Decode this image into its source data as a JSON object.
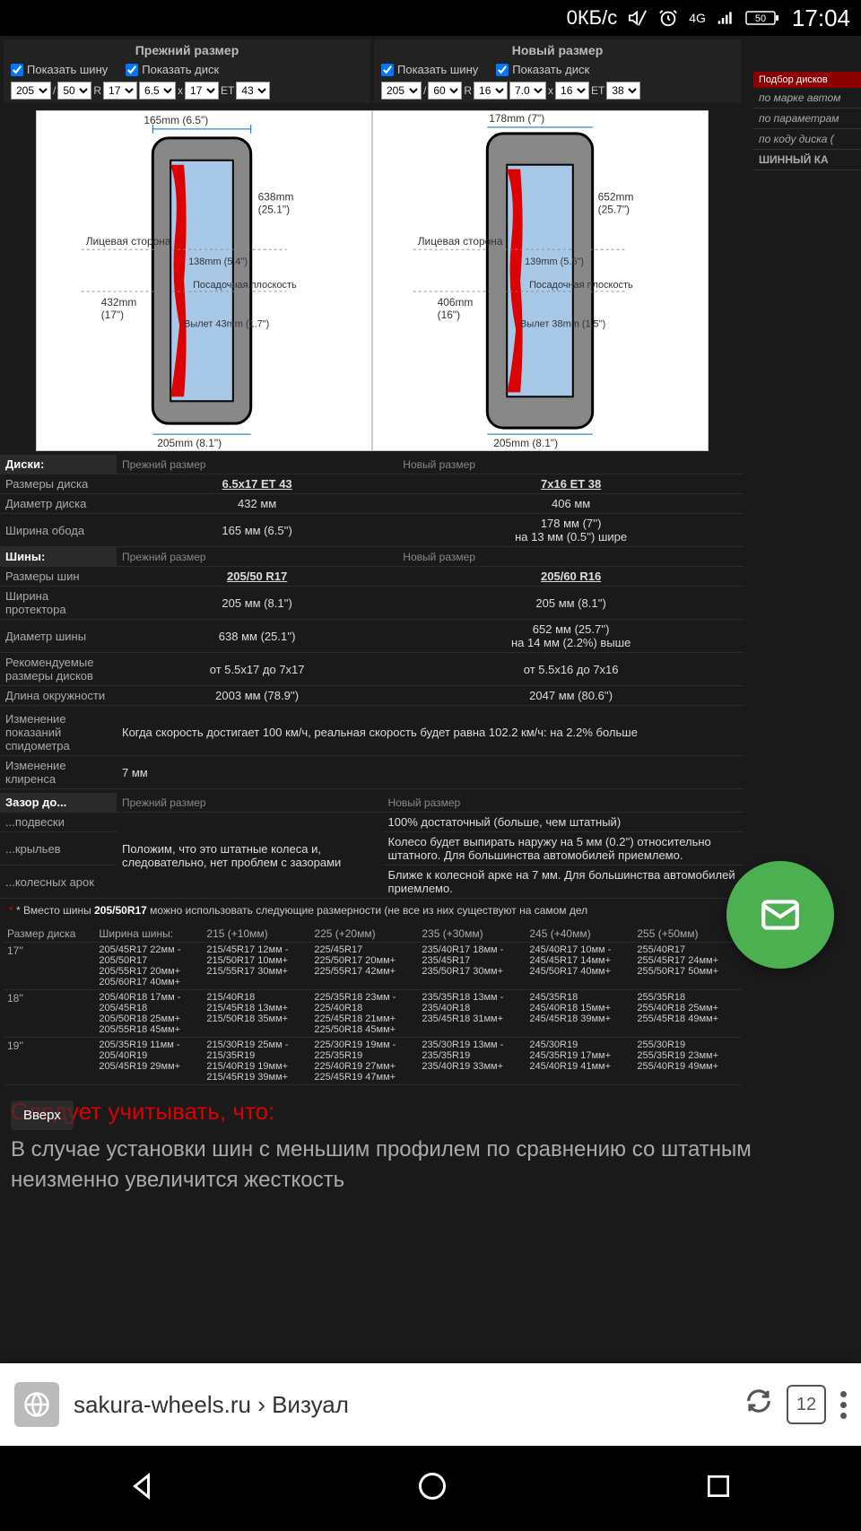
{
  "status": {
    "data": "0КБ/с",
    "net": "4G",
    "battery": "50",
    "time": "17:04"
  },
  "cols": {
    "old": {
      "title": "Прежний размер",
      "showTire": "Показать шину",
      "showDisc": "Показать диск",
      "w": "205",
      "p": "50",
      "r": "R",
      "d": "17",
      "dw": "6.5",
      "dd": "17",
      "et": "ET",
      "etv": "43"
    },
    "new": {
      "title": "Новый размер",
      "showTire": "Показать шину",
      "showDisc": "Показать диск",
      "w": "205",
      "p": "60",
      "r": "R",
      "d": "16",
      "dw": "7.0",
      "dd": "16",
      "et": "ET",
      "etv": "38"
    }
  },
  "side": {
    "hdr": "Подбор дисков",
    "i1": "по марке автом",
    "i2": "по параметрам",
    "i3": "по коду диска (",
    "calc": "ШИННЫЙ КА"
  },
  "diag": {
    "old": {
      "topW": "165mm (6.5\")",
      "tireD": "638mm",
      "tireDi": "(25.1\")",
      "face": "Лицевая сторона",
      "flange": "138mm (5.4\")",
      "seat": "Посадочная плоскость",
      "rimD": "432mm",
      "rimDi": "(17\")",
      "offset": "Вылет 43mm (1.7\")",
      "botW": "205mm (8.1\")"
    },
    "new": {
      "topW": "178mm (7\")",
      "tireD": "652mm",
      "tireDi": "(25.7\")",
      "face": "Лицевая сторона",
      "flange": "139mm (5.5\")",
      "seat": "Посадочная плоскость",
      "rimD": "406mm",
      "rimDi": "(16\")",
      "offset": "Вылет 38mm (1.5\")",
      "botW": "205mm (8.1\")"
    }
  },
  "tDisc": {
    "h": "Диски:",
    "c1": "Прежний размер",
    "c2": "Новый размер",
    "r1": {
      "l": "Размеры диска",
      "v1": "6.5x17 ET 43",
      "v2": "7x16 ET 38"
    },
    "r2": {
      "l": "Диаметр диска",
      "v1": "432 мм",
      "v2": "406 мм"
    },
    "r3": {
      "l": "Ширина обода",
      "v1": "165 мм (6.5'')",
      "v2": "178 мм (7'')",
      "v2b": "на 13 мм (0.5'') шире"
    }
  },
  "tTire": {
    "h": "Шины:",
    "c1": "Прежний размер",
    "c2": "Новый размер",
    "r1": {
      "l": "Размеры шин",
      "v1": "205/50 R17",
      "v2": "205/60 R16"
    },
    "r2": {
      "l": "Ширина протектора",
      "v1": "205 мм (8.1'')",
      "v2": "205 мм (8.1'')"
    },
    "r3": {
      "l": "Диаметр шины",
      "v1": "638 мм (25.1'')",
      "v2": "652 мм (25.7'')",
      "v2b": "на 14 мм (2.2%) выше"
    },
    "r4": {
      "l": "Рекомендуемые размеры дисков",
      "v1": "от 5.5x17 до 7x17",
      "v2": "от 5.5x16 до 7x16"
    },
    "r5": {
      "l": "Длина окружности",
      "v1": "2003 мм (78.9'')",
      "v2": "2047 мм (80.6'')"
    }
  },
  "tExtra": {
    "r1": {
      "l": "Изменение показаний спидометра",
      "v": "Когда скорость достигает 100 км/ч, реальная скорость будет равна 102.2 км/ч: на 2.2% больше"
    },
    "r2": {
      "l": "Изменение клиренса",
      "v": "7 мм"
    }
  },
  "tGap": {
    "h": "Зазор до...",
    "c1": "Прежний размер",
    "c2": "Новый размер",
    "r1": {
      "l": "...подвески",
      "v1": "Положим, что это штатные колеса и, следовательно, нет проблем с зазорами",
      "v2": "100% достаточный (больше, чем штатный)"
    },
    "r2": {
      "l": "...крыльев",
      "v2": "Колесо будет выпирать наружу на 5 мм (0.2'') относительно штатного. Для большинства автомобилей приемлемо."
    },
    "r3": {
      "l": "...колесных арок",
      "v2": "Ближе к колесной арке на 7 мм. Для большинства автомобилей приемлемо."
    }
  },
  "altNote": {
    "pre": "* Вместо шины ",
    "size": "205/50R17",
    "post": " можно использовать следующие размерности (не все из них существуют на самом дел"
  },
  "alt": {
    "hDisc": "Размер диска",
    "hTire": "Ширина шины:",
    "cols": [
      "215 (+10мм)",
      "225 (+20мм)",
      "235 (+30мм)",
      "245 (+40мм)",
      "255 (+50мм)"
    ],
    "rows": [
      {
        "d": "17''",
        "base": [
          "205/45R17 22мм -",
          "205/50R17",
          "205/55R17 20мм+",
          "205/60R17 40мм+"
        ],
        "c": [
          [
            "215/45R17 12мм -",
            "215/50R17 10мм+",
            "215/55R17 30мм+"
          ],
          [
            "225/45R17",
            "225/50R17 20мм+",
            "225/55R17 42мм+"
          ],
          [
            "235/40R17 18мм -",
            "235/45R17",
            "235/50R17 30мм+"
          ],
          [
            "245/40R17 10мм -",
            "245/45R17 14мм+",
            "245/50R17 40мм+"
          ],
          [
            "255/40R17",
            "255/45R17 24мм+",
            "255/50R17 50мм+"
          ]
        ]
      },
      {
        "d": "18''",
        "base": [
          "205/40R18 17мм -",
          "205/45R18",
          "205/50R18 25мм+",
          "205/55R18 45мм+"
        ],
        "c": [
          [
            "215/40R18",
            "215/45R18 13мм+",
            "215/50R18 35мм+"
          ],
          [
            "225/35R18 23мм -",
            "225/40R18",
            "225/45R18 21мм+",
            "225/50R18 45мм+"
          ],
          [
            "235/35R18 13мм -",
            "235/40R18",
            "235/45R18 31мм+"
          ],
          [
            "245/35R18",
            "245/40R18 15мм+",
            "245/45R18 39мм+"
          ],
          [
            "255/35R18",
            "255/40R18 25мм+",
            "255/45R18 49мм+"
          ]
        ]
      },
      {
        "d": "19''",
        "base": [
          "205/35R19 11мм -",
          "205/40R19",
          "205/45R19 29мм+"
        ],
        "c": [
          [
            "215/30R19 25мм -",
            "215/35R19",
            "215/40R19 19мм+",
            "215/45R19 39мм+"
          ],
          [
            "225/30R19 19мм -",
            "225/35R19",
            "225/40R19 27мм+",
            "225/45R19 47мм+"
          ],
          [
            "235/30R19 13мм -",
            "235/35R19",
            "235/40R19 33мм+"
          ],
          [
            "245/30R19",
            "245/35R19 17мм+",
            "245/40R19 41мм+"
          ],
          [
            "255/30R19",
            "255/35R19 23мм+",
            "255/40R19 49мм+"
          ]
        ]
      }
    ]
  },
  "heading": "Следует учитывать, что:",
  "body": "В случае установки шин с меньшим профилем по сравнению со штатным неизменно увеличится жесткость",
  "scrollup": "Вверх",
  "browser": {
    "url": "sakura-wheels.ru › Визуал",
    "tabs": "12"
  }
}
